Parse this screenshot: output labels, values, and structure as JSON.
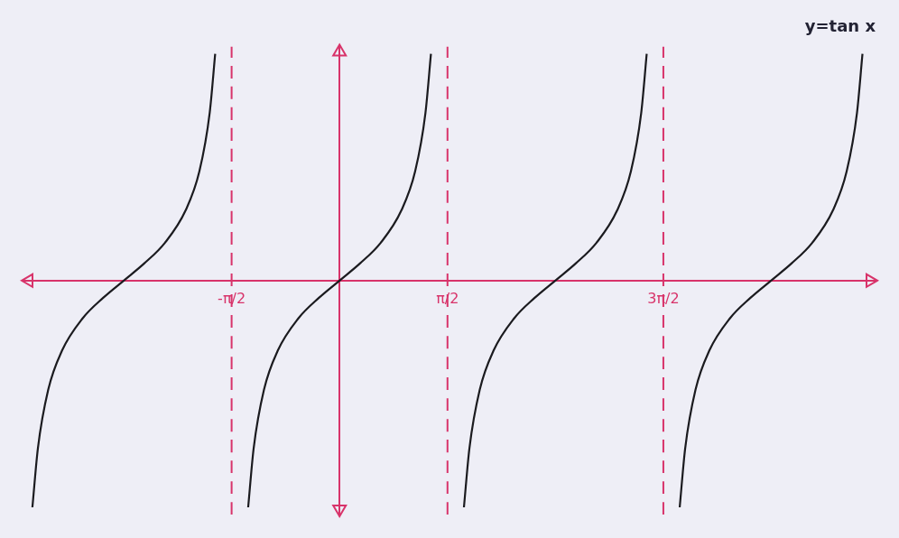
{
  "chart_data": {
    "type": "line",
    "title": "y=tan x",
    "xlim": [
      -4.6,
      7.8
    ],
    "ylim": [
      -4.2,
      4.2
    ],
    "xticks": [
      {
        "value": -1.5708,
        "label": "-π/2"
      },
      {
        "value": 1.5708,
        "label": "π/2"
      },
      {
        "value": 4.7124,
        "label": "3π/2"
      }
    ],
    "yticks": [],
    "tick_labels": "x",
    "grid": false,
    "series": [
      {
        "color": "#1b1b1f",
        "line_style": "solid",
        "x": [
          -4.47,
          -4.39,
          -4.24,
          -4.04,
          -3.74,
          -3.44,
          -3.14,
          -2.84,
          -2.54,
          -2.24,
          -2.04,
          -1.89,
          -1.81
        ],
        "values": [
          -4.07,
          -3.01,
          -1.96,
          -1.26,
          -0.68,
          -0.31,
          0,
          0.31,
          0.68,
          1.26,
          1.96,
          3.01,
          4.07
        ]
      },
      {
        "color": "#1b1b1f",
        "line_style": "solid",
        "x": [
          -1.33,
          -1.25,
          -1.1,
          -0.9,
          -0.6,
          -0.3,
          0,
          0.3,
          0.6,
          0.9,
          1.1,
          1.25,
          1.33
        ],
        "values": [
          -4.07,
          -3.01,
          -1.96,
          -1.26,
          -0.68,
          -0.31,
          0,
          0.31,
          0.68,
          1.26,
          1.96,
          3.01,
          4.07
        ]
      },
      {
        "color": "#1b1b1f",
        "line_style": "solid",
        "x": [
          1.81,
          1.89,
          2.04,
          2.24,
          2.54,
          2.84,
          3.14,
          3.44,
          3.74,
          4.04,
          4.24,
          4.39,
          4.47
        ],
        "values": [
          -4.07,
          -3.01,
          -1.96,
          -1.26,
          -0.68,
          -0.31,
          0,
          0.31,
          0.68,
          1.26,
          1.96,
          3.01,
          4.07
        ]
      },
      {
        "color": "#1b1b1f",
        "line_style": "solid",
        "x": [
          4.95,
          5.03,
          5.18,
          5.38,
          5.68,
          5.98,
          6.28,
          6.58,
          6.88,
          7.18,
          7.38,
          7.53,
          7.61
        ],
        "values": [
          -4.07,
          -3.01,
          -1.96,
          -1.26,
          -0.68,
          -0.31,
          0,
          0.31,
          0.68,
          1.26,
          1.96,
          3.01,
          4.07
        ]
      },
      {
        "color": "#d8336a",
        "line_style": "dashed",
        "x": [
          -1.5708,
          -1.5708
        ],
        "values": [
          -4.2,
          4.2
        ]
      },
      {
        "color": "#d8336a",
        "line_style": "dashed",
        "x": [
          1.5708,
          1.5708
        ],
        "values": [
          -4.2,
          4.2
        ]
      },
      {
        "color": "#d8336a",
        "line_style": "dashed",
        "x": [
          4.7124,
          4.7124
        ],
        "values": [
          -4.2,
          4.2
        ]
      }
    ]
  }
}
